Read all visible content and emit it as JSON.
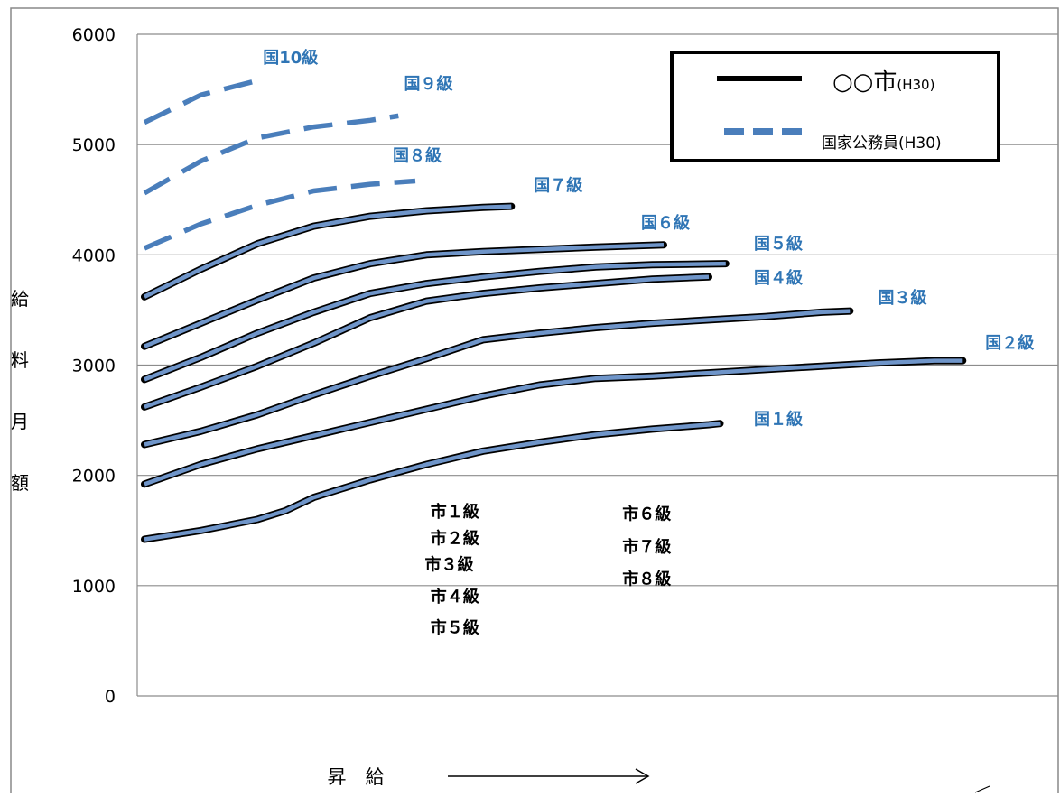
{
  "chart_data": {
    "type": "line",
    "title": "",
    "ylabel_chars": [
      "給",
      "料",
      "月",
      "額"
    ],
    "xlabel": "昇　給",
    "ylim": [
      0,
      6000
    ],
    "y_ticks": [
      "0",
      "1000",
      "2000",
      "3000",
      "4000",
      "5000",
      "6000"
    ],
    "grid": true,
    "legend": {
      "placement": "top-right",
      "entries": [
        {
          "name": "○○市",
          "suffix": "(H30)",
          "style": "solid",
          "color": "#000000"
        },
        {
          "name": "国家公務員",
          "suffix": "(H30)",
          "style": "dashed",
          "color": "#4a7ebb"
        }
      ]
    },
    "series": [
      {
        "name": "国１級",
        "group": "national",
        "style": "solid-overlay",
        "x": [
          0,
          1,
          2,
          2.5,
          3,
          4,
          5,
          6,
          7,
          8,
          9,
          10,
          10.2
        ],
        "y": [
          1420,
          1500,
          1600,
          1680,
          1800,
          1960,
          2100,
          2220,
          2300,
          2370,
          2420,
          2460,
          2470
        ]
      },
      {
        "name": "国２級",
        "group": "national",
        "style": "solid-overlay",
        "x": [
          0,
          1,
          2,
          3,
          4,
          5,
          6,
          7,
          8,
          9,
          10,
          11,
          12,
          13,
          14,
          14.5
        ],
        "y": [
          1920,
          2100,
          2240,
          2360,
          2480,
          2600,
          2720,
          2820,
          2880,
          2900,
          2930,
          2960,
          2990,
          3020,
          3040,
          3040
        ]
      },
      {
        "name": "国３級",
        "group": "national",
        "style": "solid-overlay",
        "x": [
          0,
          1,
          2,
          3,
          4,
          5,
          6,
          7,
          8,
          9,
          10,
          11,
          12,
          12.5
        ],
        "y": [
          2280,
          2400,
          2550,
          2730,
          2900,
          3060,
          3230,
          3290,
          3340,
          3380,
          3410,
          3440,
          3480,
          3490
        ]
      },
      {
        "name": "国４級",
        "group": "national",
        "style": "solid-overlay",
        "x": [
          0,
          1,
          2,
          3,
          4,
          5,
          6,
          7,
          8,
          9,
          10
        ],
        "y": [
          2620,
          2800,
          2990,
          3200,
          3430,
          3580,
          3650,
          3700,
          3740,
          3780,
          3800
        ]
      },
      {
        "name": "国５級",
        "group": "national",
        "style": "solid-overlay",
        "x": [
          0,
          1,
          2,
          3,
          4,
          5,
          6,
          7,
          8,
          9,
          10.3
        ],
        "y": [
          2870,
          3070,
          3290,
          3480,
          3650,
          3740,
          3800,
          3850,
          3890,
          3910,
          3920
        ]
      },
      {
        "name": "国６級",
        "group": "national",
        "style": "solid-overlay",
        "x": [
          0,
          1,
          2,
          3,
          4,
          5,
          6,
          7,
          8,
          9.2
        ],
        "y": [
          3170,
          3380,
          3590,
          3790,
          3920,
          4000,
          4030,
          4050,
          4070,
          4090
        ]
      },
      {
        "name": "国７級",
        "group": "national",
        "style": "solid-overlay",
        "x": [
          0,
          1,
          2,
          3,
          4,
          5,
          6,
          6.5
        ],
        "y": [
          3620,
          3870,
          4100,
          4260,
          4350,
          4400,
          4430,
          4440
        ]
      },
      {
        "name": "国８級",
        "group": "national",
        "style": "dashed",
        "x": [
          0,
          1,
          2,
          3,
          4,
          4.8
        ],
        "y": [
          4060,
          4280,
          4450,
          4580,
          4640,
          4670
        ]
      },
      {
        "name": "国９級",
        "group": "national",
        "style": "dashed",
        "x": [
          0,
          1,
          2,
          3,
          4,
          4.5
        ],
        "y": [
          4560,
          4850,
          5060,
          5160,
          5220,
          5260
        ]
      },
      {
        "name": "国10級",
        "group": "national",
        "style": "dashed",
        "x": [
          0,
          1,
          2
        ],
        "y": [
          5200,
          5450,
          5580
        ]
      }
    ],
    "city_labels": [
      {
        "label": "市１級",
        "x": 5.5,
        "y": 1620
      },
      {
        "label": "市２級",
        "x": 5.5,
        "y": 1380
      },
      {
        "label": "市３級",
        "x": 5.4,
        "y": 1140
      },
      {
        "label": "市４級",
        "x": 5.5,
        "y": 850
      },
      {
        "label": "市５級",
        "x": 5.5,
        "y": 570
      },
      {
        "label": "市６級",
        "x": 8.9,
        "y": 1600
      },
      {
        "label": "市７級",
        "x": 8.9,
        "y": 1300
      },
      {
        "label": "市８級",
        "x": 8.9,
        "y": 1010
      }
    ],
    "series_label_positions": [
      {
        "x": 10.8,
        "y": 2460
      },
      {
        "x": 14.9,
        "y": 3150
      },
      {
        "x": 13.0,
        "y": 3560
      },
      {
        "x": 10.8,
        "y": 3740
      },
      {
        "x": 10.8,
        "y": 4050
      },
      {
        "x": 8.8,
        "y": 4240
      },
      {
        "x": 6.9,
        "y": 4580
      },
      {
        "x": 4.4,
        "y": 4850
      },
      {
        "x": 4.6,
        "y": 5500
      },
      {
        "x": 2.1,
        "y": 5740
      }
    ]
  }
}
